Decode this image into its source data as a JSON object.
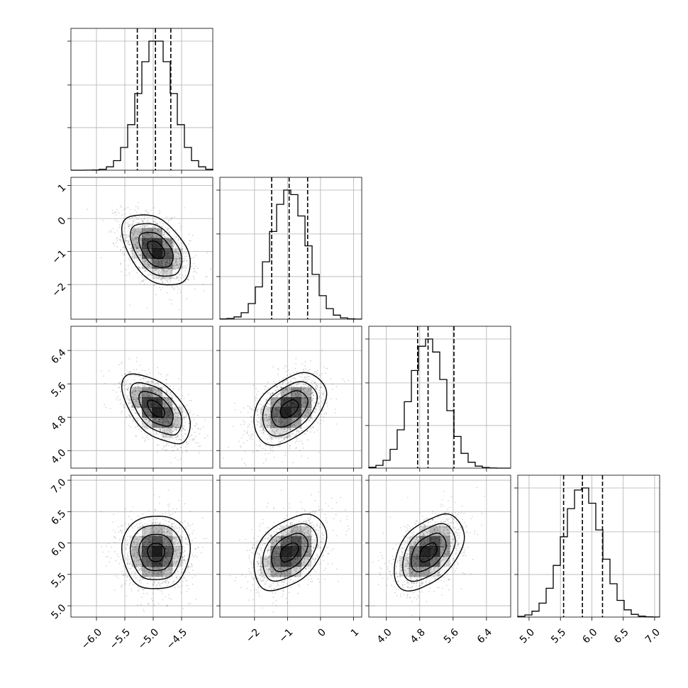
{
  "chart_data": {
    "type": "corner",
    "grid": true,
    "variables": [
      {
        "mean": -4.95,
        "q16": -5.28,
        "q50": -4.96,
        "q84": -4.69,
        "sd": 0.3,
        "range": [
          -6.45,
          -3.95
        ],
        "ticks": [
          -6.0,
          -5.5,
          -5.0,
          -4.5
        ],
        "tick_labels": [
          "−6.0",
          "−5.5",
          "−5.0",
          "−4.5"
        ]
      },
      {
        "mean": -0.95,
        "q16": -1.48,
        "q50": -0.95,
        "q84": -0.39,
        "sd": 0.55,
        "range": [
          -3.05,
          1.25
        ],
        "ticks": [
          -2,
          -1,
          0,
          1
        ],
        "tick_labels": [
          "−2",
          "−1",
          "0",
          "1"
        ]
      },
      {
        "mean": 5.0,
        "q16": 4.75,
        "q50": 5.0,
        "q84": 5.62,
        "sd": 0.42,
        "range": [
          3.58,
          6.98
        ],
        "ticks": [
          4.0,
          4.8,
          5.6,
          6.4
        ],
        "tick_labels": [
          "4.0",
          "4.8",
          "5.6",
          "6.4"
        ]
      },
      {
        "mean": 5.85,
        "q16": 5.55,
        "q50": 5.85,
        "q84": 6.17,
        "sd": 0.3,
        "range": [
          4.82,
          7.08
        ],
        "ticks": [
          5.0,
          5.5,
          6.0,
          6.5,
          7.0
        ],
        "tick_labels": [
          "5.0",
          "5.5",
          "6.0",
          "6.5",
          "7.0"
        ]
      }
    ],
    "correlations": [
      {
        "pair": [
          0,
          1
        ],
        "r": -0.45
      },
      {
        "pair": [
          0,
          2
        ],
        "r": -0.55
      },
      {
        "pair": [
          0,
          3
        ],
        "r": 0.0
      },
      {
        "pair": [
          1,
          2
        ],
        "r": 0.4
      },
      {
        "pair": [
          1,
          3
        ],
        "r": 0.4
      },
      {
        "pair": [
          2,
          3
        ],
        "r": 0.45
      }
    ],
    "colors": {
      "line": "#000000",
      "grid": "#b0b0b0",
      "points": "#999999"
    }
  }
}
